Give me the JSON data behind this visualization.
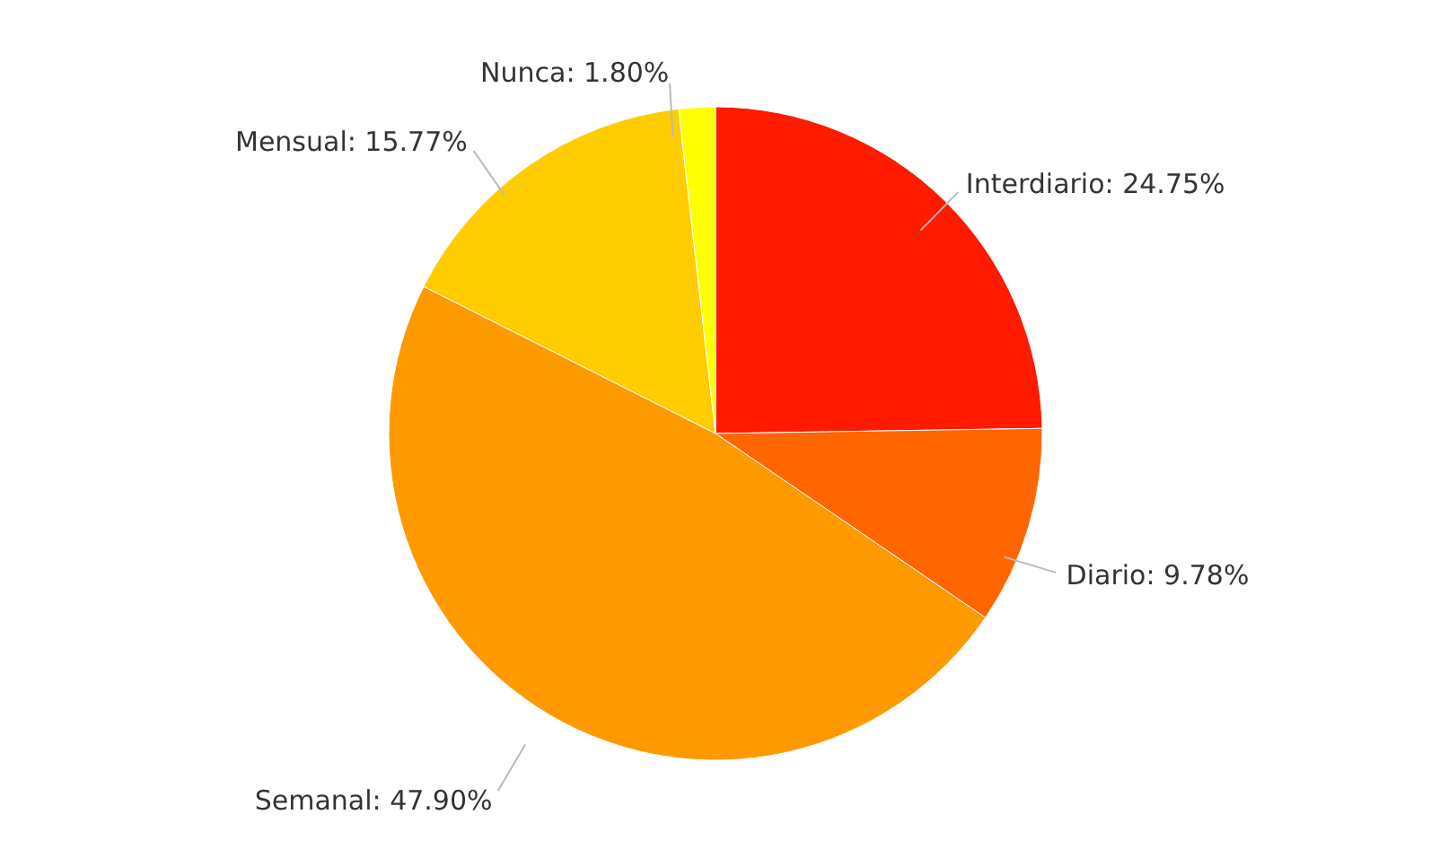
{
  "chart_data": {
    "type": "pie",
    "categories": [
      "Interdiario",
      "Diario",
      "Semanal",
      "Mensual",
      "Nunca"
    ],
    "values": [
      24.75,
      9.78,
      47.9,
      15.77,
      1.8
    ],
    "value_labels": [
      "24.75%",
      "9.78%",
      "47.90%",
      "15.77%",
      "1.80%"
    ],
    "colors": [
      "#ff1a00",
      "#ff6600",
      "#ff9900",
      "#ffcc00",
      "#ffff00"
    ]
  }
}
